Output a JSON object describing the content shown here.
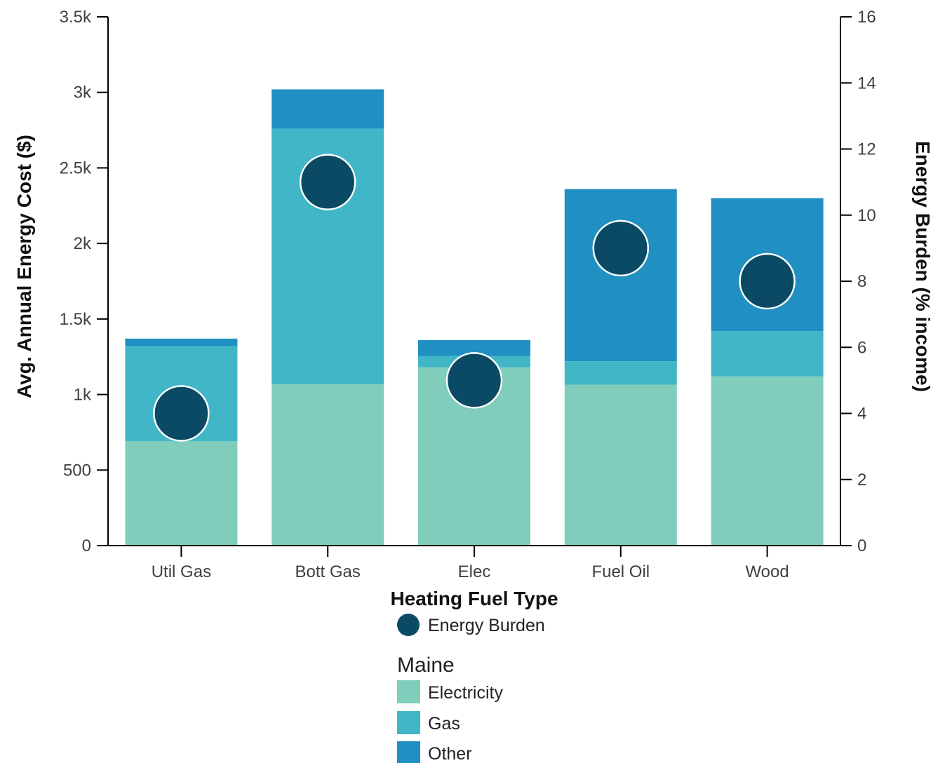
{
  "colors": {
    "electricity": "#80cdbb",
    "gas": "#40b6c6",
    "other": "#2090c2",
    "burden": "#0b4a64",
    "axis": "#000000",
    "text": "#404040"
  },
  "chart_data": {
    "type": "bar",
    "stacked": true,
    "categories": [
      "Util Gas",
      "Bott Gas",
      "Elec",
      "Fuel Oil",
      "Wood"
    ],
    "series": [
      {
        "name": "Electricity",
        "values": [
          690,
          1070,
          1180,
          1065,
          1120
        ]
      },
      {
        "name": "Gas",
        "values": [
          630,
          1690,
          75,
          155,
          300
        ]
      },
      {
        "name": "Other",
        "values": [
          50,
          260,
          105,
          1140,
          880
        ]
      }
    ],
    "overlay_series": {
      "name": "Energy Burden",
      "type": "scatter",
      "axis": "right",
      "values": [
        4.0,
        11.0,
        5.0,
        9.0,
        8.0
      ]
    },
    "xlabel": "Heating Fuel Type",
    "ylabel": "Avg. Annual Energy Cost ($)",
    "y2label": "Energy Burden (% income)",
    "ylim": [
      0,
      3500
    ],
    "y2lim": [
      0,
      16
    ],
    "yticks": [
      {
        "value": 0,
        "label": "0"
      },
      {
        "value": 500,
        "label": "500"
      },
      {
        "value": 1000,
        "label": "1k"
      },
      {
        "value": 1500,
        "label": "1.5k"
      },
      {
        "value": 2000,
        "label": "2k"
      },
      {
        "value": 2500,
        "label": "2.5k"
      },
      {
        "value": 3000,
        "label": "3k"
      },
      {
        "value": 3500,
        "label": "3.5k"
      }
    ],
    "y2ticks": [
      {
        "value": 0,
        "label": "0"
      },
      {
        "value": 2,
        "label": "2"
      },
      {
        "value": 4,
        "label": "4"
      },
      {
        "value": 6,
        "label": "6"
      },
      {
        "value": 8,
        "label": "8"
      },
      {
        "value": 10,
        "label": "10"
      },
      {
        "value": 12,
        "label": "12"
      },
      {
        "value": 14,
        "label": "14"
      },
      {
        "value": 16,
        "label": "16"
      }
    ],
    "grid": false,
    "legend": {
      "placement": "bottom",
      "burden_label": "Energy Burden",
      "group_title": "Maine",
      "items": [
        "Electricity",
        "Gas",
        "Other"
      ]
    }
  }
}
